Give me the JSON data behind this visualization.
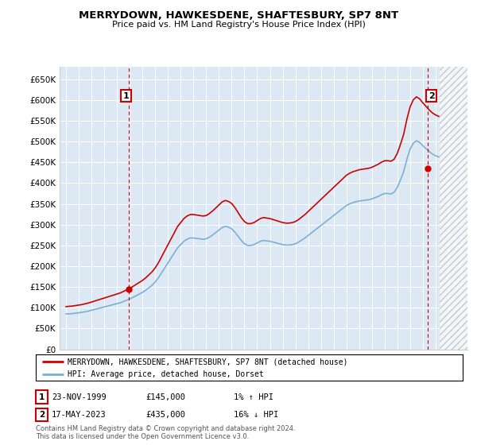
{
  "title": "MERRYDOWN, HAWKESDENE, SHAFTESBURY, SP7 8NT",
  "subtitle": "Price paid vs. HM Land Registry's House Price Index (HPI)",
  "ylim": [
    0,
    680000
  ],
  "xlim_start": 1994.5,
  "xlim_end": 2026.5,
  "yticks": [
    0,
    50000,
    100000,
    150000,
    200000,
    250000,
    300000,
    350000,
    400000,
    450000,
    500000,
    550000,
    600000,
    650000
  ],
  "ytick_labels": [
    "£0",
    "£50K",
    "£100K",
    "£150K",
    "£200K",
    "£250K",
    "£300K",
    "£350K",
    "£400K",
    "£450K",
    "£500K",
    "£550K",
    "£600K",
    "£650K"
  ],
  "xticks": [
    1995,
    1996,
    1997,
    1998,
    1999,
    2000,
    2001,
    2002,
    2003,
    2004,
    2005,
    2006,
    2007,
    2008,
    2009,
    2010,
    2011,
    2012,
    2013,
    2014,
    2015,
    2016,
    2017,
    2018,
    2019,
    2020,
    2021,
    2022,
    2023,
    2024,
    2025,
    2026
  ],
  "background_color": "#dce9f5",
  "hatch_start": 2024.3,
  "ann1_x": 1999.9,
  "ann1_y": 145000,
  "ann2_x": 2023.38,
  "ann2_y": 435000,
  "red_line_color": "#cc0000",
  "blue_line_color": "#7bafd4",
  "legend_label1": "MERRYDOWN, HAWKESDENE, SHAFTESBURY, SP7 8NT (detached house)",
  "legend_label2": "HPI: Average price, detached house, Dorset",
  "footer1": "Contains HM Land Registry data © Crown copyright and database right 2024.",
  "footer2": "This data is licensed under the Open Government Licence v3.0.",
  "table_row1_num": "1",
  "table_row1_date": "23-NOV-1999",
  "table_row1_price": "£145,000",
  "table_row1_pct": "1% ↑ HPI",
  "table_row2_num": "2",
  "table_row2_date": "17-MAY-2023",
  "table_row2_price": "£435,000",
  "table_row2_pct": "16% ↓ HPI"
}
